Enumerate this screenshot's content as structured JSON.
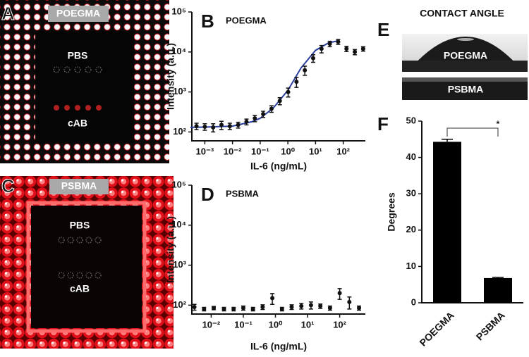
{
  "panels": {
    "A": {
      "letter": "A",
      "badge": "POEGMA",
      "top": "PBS",
      "bottom": "cAB"
    },
    "B": {
      "letter": "B"
    },
    "C": {
      "letter": "C",
      "badge": "PSBMA",
      "top": "PBS",
      "bottom": "cAB"
    },
    "D": {
      "letter": "D"
    },
    "E": {
      "letter": "E",
      "title": "CONTACT ANGLE",
      "top": "POEGMA",
      "bottom": "PSBMA"
    },
    "F": {
      "letter": "F"
    }
  },
  "chart_data": [
    {
      "type": "scatter",
      "title": "POEGMA",
      "x_label": "IL-6 (ng/mL)",
      "y_label": "Intensity (a.u.)",
      "xlog": true,
      "ylog": true,
      "color": "#111111",
      "fit_color": "#2b3f9e",
      "x": [
        0.0005,
        0.001,
        0.002,
        0.004,
        0.008,
        0.016,
        0.032,
        0.064,
        0.128,
        0.256,
        0.512,
        1.024,
        2.048,
        4.096,
        8.192,
        16.384,
        32.768,
        65.536,
        131.072,
        262.144,
        524.288
      ],
      "values": [
        140,
        135,
        130,
        150,
        140,
        150,
        180,
        220,
        280,
        380,
        600,
        1000,
        1800,
        3500,
        7000,
        12000,
        16000,
        18000,
        12000,
        10000,
        12000
      ],
      "errors": [
        25,
        25,
        30,
        35,
        25,
        25,
        30,
        40,
        50,
        70,
        120,
        250,
        500,
        900,
        1500,
        2500,
        2500,
        2500,
        1800,
        1500,
        1500
      ],
      "fit": {
        "x": [
          0.0003,
          0.001,
          0.01,
          0.05,
          0.1,
          0.3,
          1,
          3,
          10,
          30,
          65
        ],
        "values": [
          130,
          132,
          140,
          180,
          220,
          400,
          1100,
          4000,
          11000,
          17000,
          19000
        ]
      },
      "xlim": [
        0.00034,
        630
      ],
      "ylim": [
        60,
        100000
      ],
      "xticks": [
        {
          "value": 0.001,
          "label": "10⁻³"
        },
        {
          "value": 0.01,
          "label": "10⁻²"
        },
        {
          "value": 0.1,
          "label": "10⁻¹"
        },
        {
          "value": 1,
          "label": "10⁰"
        },
        {
          "value": 10,
          "label": "10¹"
        },
        {
          "value": 100,
          "label": "10²"
        }
      ],
      "yticks": [
        {
          "value": 100,
          "label": "10²"
        },
        {
          "value": 1000,
          "label": "10³"
        },
        {
          "value": 10000,
          "label": "10⁴"
        },
        {
          "value": 100000,
          "label": "10⁵"
        }
      ]
    },
    {
      "type": "scatter",
      "title": "PSBMA",
      "x_label": "IL-6 (ng/mL)",
      "y_label": "Intensity (a.u.)",
      "xlog": true,
      "ylog": true,
      "color": "#111111",
      "x": [
        0.003,
        0.006,
        0.012,
        0.025,
        0.05,
        0.1,
        0.2,
        0.4,
        0.8,
        1.6,
        3.2,
        6.4,
        12.8,
        25,
        50,
        100,
        200,
        400
      ],
      "values": [
        90,
        80,
        85,
        80,
        80,
        85,
        80,
        90,
        150,
        80,
        90,
        95,
        100,
        95,
        85,
        200,
        120,
        85
      ],
      "errors": [
        15,
        8,
        8,
        8,
        8,
        10,
        8,
        12,
        45,
        8,
        12,
        15,
        20,
        12,
        10,
        60,
        40,
        10
      ],
      "xlim": [
        0.0025,
        630
      ],
      "ylim": [
        60,
        100000
      ],
      "xticks": [
        {
          "value": 0.01,
          "label": "10⁻²"
        },
        {
          "value": 0.1,
          "label": "10⁻¹"
        },
        {
          "value": 1,
          "label": "10⁰"
        },
        {
          "value": 10,
          "label": "10¹"
        },
        {
          "value": 100,
          "label": "10²"
        }
      ],
      "yticks": [
        {
          "value": 100,
          "label": "10²"
        },
        {
          "value": 1000,
          "label": "10³"
        },
        {
          "value": 10000,
          "label": "10⁴"
        },
        {
          "value": 100000,
          "label": "10⁵"
        }
      ]
    },
    {
      "type": "bar",
      "y_label": "Degrees",
      "color": "#000000",
      "categories": [
        "POEGMA",
        "PSBMA"
      ],
      "values": [
        44.3,
        6.8
      ],
      "errors": [
        0.7,
        0.2
      ],
      "annotation": "*",
      "ylim": [
        0,
        50
      ],
      "yticks": [
        0,
        10,
        20,
        30,
        40,
        50
      ]
    }
  ]
}
